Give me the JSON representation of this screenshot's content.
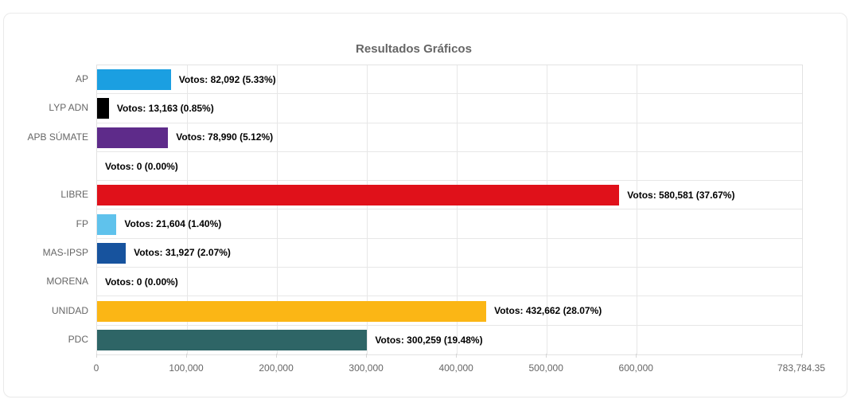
{
  "title": "Resultados Gráficos",
  "chart_data": {
    "type": "bar",
    "orientation": "horizontal",
    "title": "Resultados Gráficos",
    "xlabel": "",
    "ylabel": "",
    "xlim": [
      0,
      783784.35
    ],
    "grid": true,
    "legend": "none",
    "x_ticks": [
      {
        "value": 0,
        "label": "0"
      },
      {
        "value": 100000,
        "label": "100,000"
      },
      {
        "value": 200000,
        "label": "200,000"
      },
      {
        "value": 300000,
        "label": "300,000"
      },
      {
        "value": 400000,
        "label": "400,000"
      },
      {
        "value": 500000,
        "label": "500,000"
      },
      {
        "value": 600000,
        "label": "600,000"
      },
      {
        "value": 783784.35,
        "label": "783,784.35"
      }
    ],
    "categories": [
      "AP",
      "LYP ADN",
      "APB SÚMATE",
      "",
      "LIBRE",
      "FP",
      "MAS-IPSP",
      "MORENA",
      "UNIDAD",
      "PDC"
    ],
    "parties": [
      {
        "name": "AP",
        "votes": 82092,
        "percent": 5.33,
        "label": "Votos: 82,092 (5.33%)",
        "color": "#1b9fe1"
      },
      {
        "name": "LYP ADN",
        "votes": 13163,
        "percent": 0.85,
        "label": "Votos: 13,163 (0.85%)",
        "color": "#000000"
      },
      {
        "name": "APB SÚMATE",
        "votes": 78990,
        "percent": 5.12,
        "label": "Votos: 78,990 (5.12%)",
        "color": "#5e2b8a"
      },
      {
        "name": "",
        "votes": 0,
        "percent": 0.0,
        "label": "Votos: 0 (0.00%)",
        "color": null
      },
      {
        "name": "LIBRE",
        "votes": 580581,
        "percent": 37.67,
        "label": "Votos: 580,581 (37.67%)",
        "color": "#e0111a"
      },
      {
        "name": "FP",
        "votes": 21604,
        "percent": 1.4,
        "label": "Votos: 21,604 (1.40%)",
        "color": "#5fc2ec"
      },
      {
        "name": "MAS-IPSP",
        "votes": 31927,
        "percent": 2.07,
        "label": "Votos: 31,927 (2.07%)",
        "color": "#17539e"
      },
      {
        "name": "MORENA",
        "votes": 0,
        "percent": 0.0,
        "label": "Votos: 0 (0.00%)",
        "color": null
      },
      {
        "name": "UNIDAD",
        "votes": 432662,
        "percent": 28.07,
        "label": "Votos: 432,662 (28.07%)",
        "color": "#fbb615"
      },
      {
        "name": "PDC",
        "votes": 300259,
        "percent": 19.48,
        "label": "Votos: 300,259 (19.48%)",
        "color": "#2e6566"
      }
    ],
    "colors": {
      "grid": "#e7e7e7",
      "axis_text": "#666666",
      "title_text": "#666666",
      "data_label_text": "#000000",
      "card_border": "#eaeaea",
      "background": "#ffffff"
    }
  }
}
